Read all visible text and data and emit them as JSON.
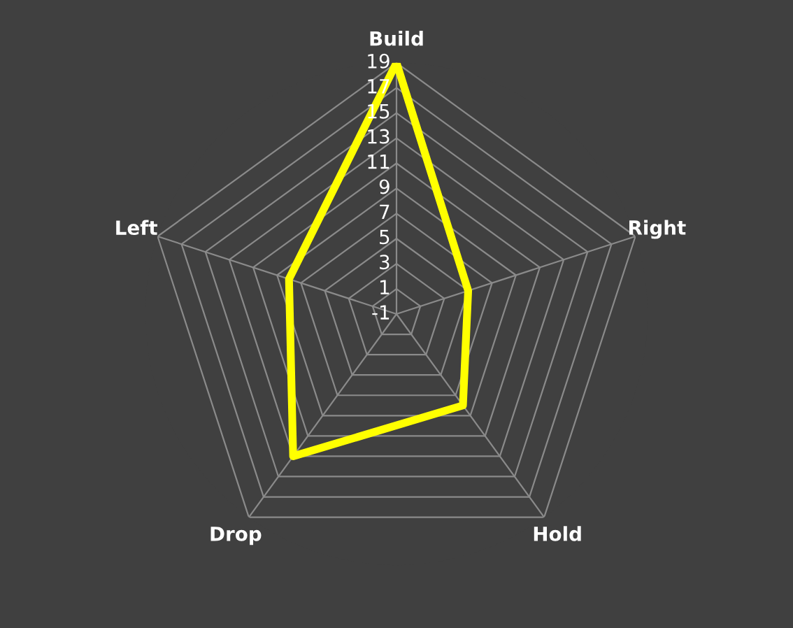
{
  "chart_data": {
    "type": "radar",
    "categories": [
      "Build",
      "Right",
      "Hold",
      "Drop",
      "Left"
    ],
    "series": [
      {
        "color": "#ffff00",
        "values": [
          19,
          5,
          8,
          13,
          8
        ]
      }
    ],
    "ylim": [
      -1,
      19
    ],
    "yticks": [
      -1,
      1,
      3,
      5,
      7,
      9,
      11,
      13,
      15,
      17,
      19
    ],
    "legend": false,
    "marker": "none"
  }
}
